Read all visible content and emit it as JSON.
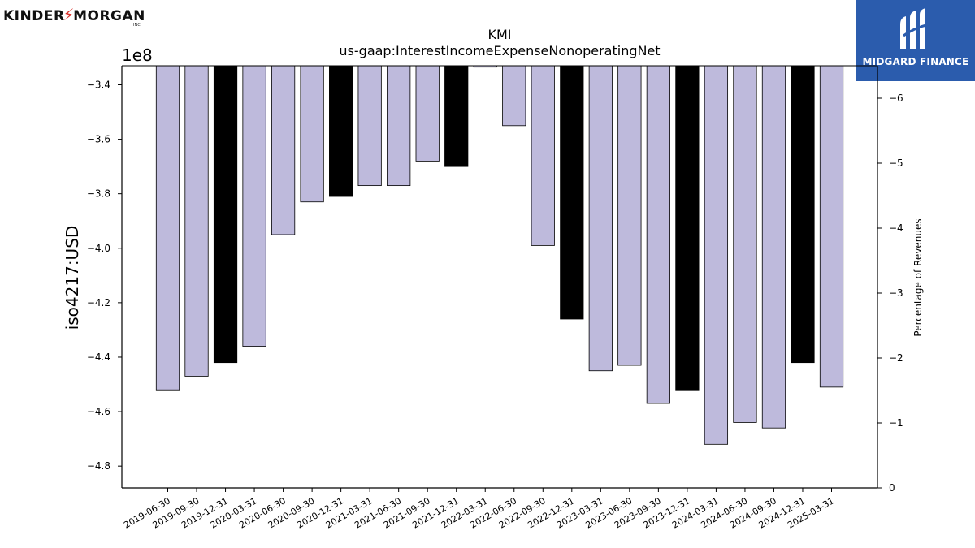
{
  "branding": {
    "company_logo_text_left": "KINDER",
    "company_logo_text_right": "MORGAN",
    "company_logo_sub": "INC.",
    "badge_label": "MIDGARD FINANCE",
    "badge_color": "#2b5cad"
  },
  "chart_data": {
    "type": "bar",
    "title": "KMI",
    "subtitle": "us-gaap:InterestIncomeExpenseNonoperatingNet",
    "ylabel": "iso4217:USD",
    "y2label": "Percentage of Revenues",
    "y_offset_label": "1e8",
    "ylim": [
      -4.88,
      -3.33
    ],
    "y_scale_note": "values in units of 1e8",
    "y_ticks": [
      -3.4,
      -3.6,
      -3.8,
      -4.0,
      -4.2,
      -4.4,
      -4.6,
      -4.8
    ],
    "y_tick_labels": [
      "−3.4",
      "−3.6",
      "−3.8",
      "−4.0",
      "−4.2",
      "−4.4",
      "−4.6",
      "−4.8"
    ],
    "y2lim": [
      0,
      -6.5
    ],
    "y2_ticks": [
      0,
      -1,
      -2,
      -3,
      -4,
      -5,
      -6
    ],
    "y2_tick_labels": [
      "0",
      "−1",
      "−2",
      "−3",
      "−4",
      "−5",
      "−6"
    ],
    "categories": [
      "2019-06-30",
      "2019-09-30",
      "2019-12-31",
      "2020-03-31",
      "2020-06-30",
      "2020-09-30",
      "2020-12-31",
      "2021-03-31",
      "2021-06-30",
      "2021-09-30",
      "2021-12-31",
      "2022-03-31",
      "2022-06-30",
      "2022-09-30",
      "2022-12-31",
      "2023-03-31",
      "2023-06-30",
      "2023-09-30",
      "2023-12-31",
      "2024-03-31",
      "2024-06-30",
      "2024-09-30",
      "2024-12-31",
      "2025-03-31"
    ],
    "values": [
      -4.52,
      -4.47,
      -4.42,
      -4.36,
      -3.95,
      -3.83,
      -3.81,
      -3.77,
      -3.77,
      -3.68,
      -3.7,
      -3.335,
      -3.55,
      -3.99,
      -4.26,
      -4.45,
      -4.43,
      -4.57,
      -4.52,
      -4.72,
      -4.64,
      -4.66,
      -4.42,
      -4.51
    ],
    "annual": [
      false,
      false,
      true,
      false,
      false,
      false,
      true,
      false,
      false,
      false,
      true,
      false,
      false,
      false,
      true,
      false,
      false,
      false,
      true,
      false,
      false,
      false,
      true,
      false
    ],
    "colors": {
      "quarter": "#bebadc",
      "annual": "#000000",
      "edge": "#000000"
    },
    "grid": false,
    "legend": "none"
  }
}
